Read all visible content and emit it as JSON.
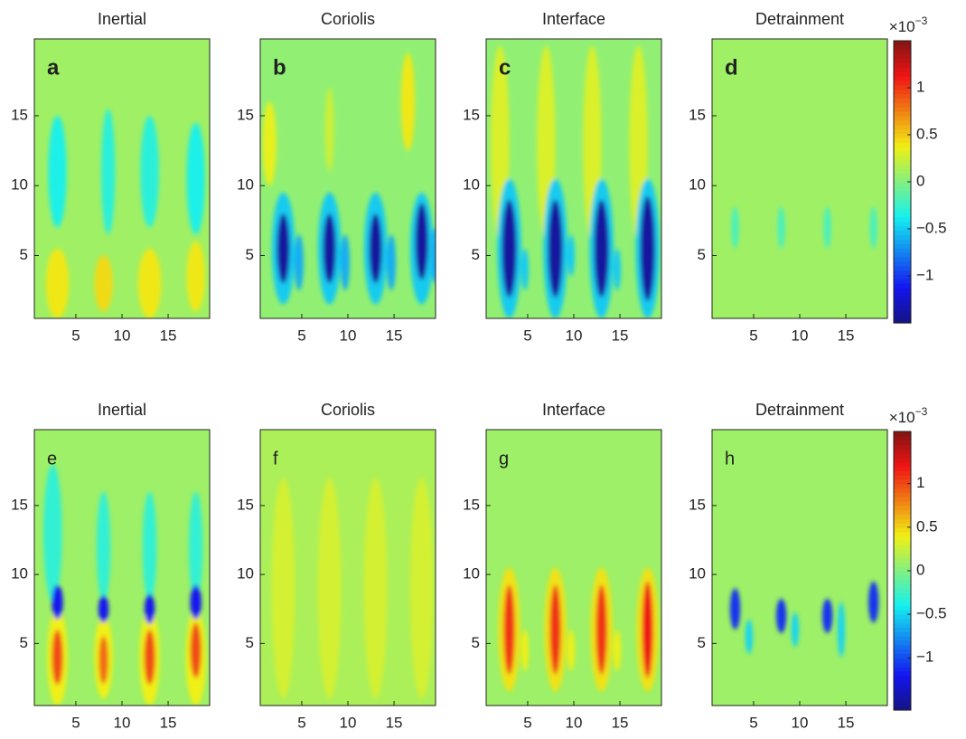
{
  "chart_data": [
    {
      "type": "heatmap",
      "title": "Inertial",
      "label": "a",
      "label_bold": true,
      "colormap": "jet",
      "clim": [
        -1.5,
        1.5
      ],
      "background": 0.1,
      "xlim": [
        0.5,
        19.5
      ],
      "ylim": [
        0.5,
        20.5
      ],
      "xticks": [
        5,
        10,
        15
      ],
      "yticks": [
        5,
        10,
        15
      ],
      "features": [
        {
          "x": 3,
          "y": 11,
          "width": 2,
          "height": 8,
          "value": -0.35
        },
        {
          "x": 8.5,
          "y": 11,
          "width": 1.5,
          "height": 9,
          "value": -0.3
        },
        {
          "x": 13,
          "y": 11,
          "width": 2,
          "height": 8,
          "value": -0.3
        },
        {
          "x": 18,
          "y": 10.5,
          "width": 2,
          "height": 8,
          "value": -0.35
        },
        {
          "x": 3,
          "y": 3,
          "width": 2.5,
          "height": 5,
          "value": 0.4
        },
        {
          "x": 8,
          "y": 3,
          "width": 2,
          "height": 4,
          "value": 0.45
        },
        {
          "x": 13,
          "y": 3,
          "width": 2.5,
          "height": 5,
          "value": 0.4
        },
        {
          "x": 18,
          "y": 3.5,
          "width": 2,
          "height": 5,
          "value": 0.4
        }
      ]
    },
    {
      "type": "heatmap",
      "title": "Coriolis",
      "label": "b",
      "label_bold": true,
      "colormap": "jet",
      "clim": [
        -1.5,
        1.5
      ],
      "background": 0.05,
      "xlim": [
        0.5,
        19.5
      ],
      "ylim": [
        0.5,
        20.5
      ],
      "xticks": [
        5,
        10,
        15
      ],
      "yticks": [
        5,
        10,
        15
      ],
      "features": [
        {
          "x": 1.5,
          "y": 13,
          "width": 1.5,
          "height": 6,
          "value": 0.35
        },
        {
          "x": 16.5,
          "y": 16,
          "width": 1.5,
          "height": 7,
          "value": 0.4
        },
        {
          "x": 8,
          "y": 14,
          "width": 1,
          "height": 6,
          "value": 0.25
        },
        {
          "x": 3,
          "y": 5.5,
          "width": 2.5,
          "height": 8,
          "value": -0.5
        },
        {
          "x": 8,
          "y": 5.5,
          "width": 2.5,
          "height": 8,
          "value": -0.5
        },
        {
          "x": 13,
          "y": 5.5,
          "width": 2.5,
          "height": 8,
          "value": -0.5
        },
        {
          "x": 18,
          "y": 5.5,
          "width": 2.5,
          "height": 8,
          "value": -0.5
        },
        {
          "x": 3,
          "y": 5.5,
          "width": 1.4,
          "height": 5,
          "value": -1.4
        },
        {
          "x": 8,
          "y": 5.5,
          "width": 1.4,
          "height": 5,
          "value": -1.4
        },
        {
          "x": 13,
          "y": 5.5,
          "width": 1.4,
          "height": 5,
          "value": -1.4
        },
        {
          "x": 18,
          "y": 6,
          "width": 1.4,
          "height": 5.5,
          "value": -1.4
        },
        {
          "x": 4.7,
          "y": 4.5,
          "width": 1,
          "height": 4,
          "value": -0.6
        },
        {
          "x": 9.7,
          "y": 4.5,
          "width": 1,
          "height": 4,
          "value": -0.6
        },
        {
          "x": 14.7,
          "y": 4.5,
          "width": 1,
          "height": 4,
          "value": -0.6
        },
        {
          "x": 19.5,
          "y": 5,
          "width": 1,
          "height": 4,
          "value": -0.6
        }
      ]
    },
    {
      "type": "heatmap",
      "title": "Interface",
      "label": "c",
      "label_bold": true,
      "colormap": "jet",
      "clim": [
        -1.5,
        1.5
      ],
      "background": 0.05,
      "xlim": [
        0.5,
        19.5
      ],
      "ylim": [
        0.5,
        20.5
      ],
      "xticks": [
        5,
        10,
        15
      ],
      "yticks": [
        5,
        10,
        15
      ],
      "features": [
        {
          "x": 2,
          "y": 13,
          "width": 2,
          "height": 14,
          "value": 0.3
        },
        {
          "x": 7,
          "y": 13,
          "width": 2,
          "height": 14,
          "value": 0.3
        },
        {
          "x": 12,
          "y": 13,
          "width": 2,
          "height": 14,
          "value": 0.3
        },
        {
          "x": 17,
          "y": 13,
          "width": 2,
          "height": 14,
          "value": 0.3
        },
        {
          "x": 3,
          "y": 5.5,
          "width": 2.6,
          "height": 10,
          "value": -0.5
        },
        {
          "x": 8,
          "y": 5.5,
          "width": 2.6,
          "height": 10,
          "value": -0.5
        },
        {
          "x": 13,
          "y": 5.5,
          "width": 2.6,
          "height": 10,
          "value": -0.5
        },
        {
          "x": 18,
          "y": 5.5,
          "width": 2.6,
          "height": 10,
          "value": -0.5
        },
        {
          "x": 3,
          "y": 5.5,
          "width": 1.6,
          "height": 7,
          "value": -1.4
        },
        {
          "x": 8,
          "y": 5.5,
          "width": 1.6,
          "height": 7,
          "value": -1.4
        },
        {
          "x": 13,
          "y": 5.5,
          "width": 1.6,
          "height": 7,
          "value": -1.4
        },
        {
          "x": 18,
          "y": 5.5,
          "width": 1.6,
          "height": 7.5,
          "value": -1.4
        },
        {
          "x": 4.7,
          "y": 4,
          "width": 0.8,
          "height": 3,
          "value": -0.5
        },
        {
          "x": 9.7,
          "y": 5,
          "width": 0.8,
          "height": 3,
          "value": -0.5
        },
        {
          "x": 14.7,
          "y": 4,
          "width": 0.8,
          "height": 3,
          "value": -0.5
        }
      ]
    },
    {
      "type": "heatmap",
      "title": "Detrainment",
      "label": "d",
      "label_bold": true,
      "colormap": "jet",
      "clim": [
        -1.5,
        1.5
      ],
      "background": 0.1,
      "xlim": [
        0.5,
        19.5
      ],
      "ylim": [
        0.5,
        20.5
      ],
      "xticks": [
        5,
        10,
        15
      ],
      "yticks": [
        5,
        10,
        15
      ],
      "features": [
        {
          "x": 3,
          "y": 7,
          "width": 0.8,
          "height": 3,
          "value": -0.2
        },
        {
          "x": 8,
          "y": 7,
          "width": 0.8,
          "height": 3,
          "value": -0.2
        },
        {
          "x": 13,
          "y": 7,
          "width": 0.8,
          "height": 3,
          "value": -0.2
        },
        {
          "x": 18,
          "y": 7,
          "width": 0.8,
          "height": 3,
          "value": -0.2
        }
      ],
      "cticks": [
        {
          "value": -1,
          "label": "−1"
        },
        {
          "value": -0.5,
          "label": "−0.5"
        },
        0,
        0.5,
        1
      ],
      "cbase": "×10",
      "cexponent": "−3"
    },
    {
      "type": "heatmap",
      "title": "Inertial",
      "label": "e",
      "label_bold": false,
      "colormap": "jet",
      "clim": [
        -1.6,
        1.6
      ],
      "background": 0.1,
      "xlim": [
        0.5,
        19.5
      ],
      "ylim": [
        0.5,
        20.5
      ],
      "xticks": [
        5,
        10,
        15
      ],
      "yticks": [
        5,
        10,
        15
      ],
      "features": [
        {
          "x": 2.5,
          "y": 13,
          "width": 2,
          "height": 10,
          "value": -0.3
        },
        {
          "x": 8,
          "y": 12,
          "width": 1.5,
          "height": 8,
          "value": -0.3
        },
        {
          "x": 13,
          "y": 12,
          "width": 1.5,
          "height": 8,
          "value": -0.3
        },
        {
          "x": 18,
          "y": 12,
          "width": 1.5,
          "height": 8,
          "value": -0.3
        },
        {
          "x": 3,
          "y": 4,
          "width": 2.2,
          "height": 7,
          "value": 0.4
        },
        {
          "x": 8,
          "y": 4,
          "width": 2,
          "height": 6,
          "value": 0.4
        },
        {
          "x": 13,
          "y": 4,
          "width": 2.2,
          "height": 7,
          "value": 0.4
        },
        {
          "x": 18,
          "y": 4,
          "width": 2.2,
          "height": 7,
          "value": 0.4
        },
        {
          "x": 3,
          "y": 4,
          "width": 1.2,
          "height": 4,
          "value": 1.0
        },
        {
          "x": 8,
          "y": 3.8,
          "width": 1,
          "height": 3.5,
          "value": 0.9
        },
        {
          "x": 13,
          "y": 4,
          "width": 1.2,
          "height": 4,
          "value": 1.0
        },
        {
          "x": 18,
          "y": 4.5,
          "width": 1.2,
          "height": 4,
          "value": 1.0
        },
        {
          "x": 3,
          "y": 8,
          "width": 1.2,
          "height": 2.5,
          "value": -1.2
        },
        {
          "x": 8,
          "y": 7.5,
          "width": 1.1,
          "height": 2,
          "value": -1.2
        },
        {
          "x": 13,
          "y": 7.5,
          "width": 1.1,
          "height": 2.2,
          "value": -1.2
        },
        {
          "x": 18,
          "y": 8,
          "width": 1.2,
          "height": 2.5,
          "value": -1.2
        }
      ]
    },
    {
      "type": "heatmap",
      "title": "Coriolis",
      "label": "f",
      "label_bold": false,
      "colormap": "jet",
      "clim": [
        -1.6,
        1.6
      ],
      "background": 0.15,
      "xlim": [
        0.5,
        19.5
      ],
      "ylim": [
        0.5,
        20.5
      ],
      "xticks": [
        5,
        10,
        15
      ],
      "yticks": [
        5,
        10,
        15
      ],
      "features": [
        {
          "x": 3,
          "y": 9,
          "width": 2.5,
          "height": 16,
          "value": 0.3
        },
        {
          "x": 8,
          "y": 9,
          "width": 2.5,
          "height": 16,
          "value": 0.3
        },
        {
          "x": 13,
          "y": 9,
          "width": 2.5,
          "height": 16,
          "value": 0.3
        },
        {
          "x": 18,
          "y": 9,
          "width": 2.5,
          "height": 16,
          "value": 0.3
        }
      ]
    },
    {
      "type": "heatmap",
      "title": "Interface",
      "label": "g",
      "label_bold": false,
      "colormap": "jet",
      "clim": [
        -1.6,
        1.6
      ],
      "background": 0.1,
      "xlim": [
        0.5,
        19.5
      ],
      "ylim": [
        0.5,
        20.5
      ],
      "xticks": [
        5,
        10,
        15
      ],
      "yticks": [
        5,
        10,
        15
      ],
      "features": [
        {
          "x": 3,
          "y": 6,
          "width": 2.4,
          "height": 9,
          "value": 0.45
        },
        {
          "x": 8,
          "y": 6,
          "width": 2.4,
          "height": 9,
          "value": 0.45
        },
        {
          "x": 13,
          "y": 6,
          "width": 2.4,
          "height": 9,
          "value": 0.45
        },
        {
          "x": 18,
          "y": 6,
          "width": 2.4,
          "height": 9,
          "value": 0.45
        },
        {
          "x": 3,
          "y": 6,
          "width": 1.2,
          "height": 6.5,
          "value": 1.1
        },
        {
          "x": 8,
          "y": 6,
          "width": 1.2,
          "height": 6.5,
          "value": 1.1
        },
        {
          "x": 13,
          "y": 6,
          "width": 1.2,
          "height": 6.5,
          "value": 1.1
        },
        {
          "x": 18,
          "y": 6,
          "width": 1.2,
          "height": 7,
          "value": 1.2
        },
        {
          "x": 4.7,
          "y": 4.5,
          "width": 0.8,
          "height": 3,
          "value": 0.4
        },
        {
          "x": 9.7,
          "y": 4.5,
          "width": 0.8,
          "height": 3,
          "value": 0.4
        },
        {
          "x": 14.7,
          "y": 4.5,
          "width": 0.8,
          "height": 3,
          "value": 0.4
        }
      ]
    },
    {
      "type": "heatmap",
      "title": "Detrainment",
      "label": "h",
      "label_bold": false,
      "colormap": "jet",
      "clim": [
        -1.6,
        1.6
      ],
      "background": 0.1,
      "xlim": [
        0.5,
        19.5
      ],
      "ylim": [
        0.5,
        20.5
      ],
      "xticks": [
        5,
        10,
        15
      ],
      "yticks": [
        5,
        10,
        15
      ],
      "features": [
        {
          "x": 3,
          "y": 7.5,
          "width": 1.1,
          "height": 3,
          "value": -1.1
        },
        {
          "x": 8,
          "y": 7,
          "width": 1.1,
          "height": 2.5,
          "value": -1.1
        },
        {
          "x": 13,
          "y": 7,
          "width": 1.1,
          "height": 2.5,
          "value": -1.1
        },
        {
          "x": 18,
          "y": 8,
          "width": 1.1,
          "height": 3,
          "value": -1.1
        },
        {
          "x": 4.5,
          "y": 5.5,
          "width": 0.8,
          "height": 2.5,
          "value": -0.5
        },
        {
          "x": 9.5,
          "y": 6,
          "width": 0.8,
          "height": 2.5,
          "value": -0.5
        },
        {
          "x": 14.5,
          "y": 6,
          "width": 0.8,
          "height": 4,
          "value": -0.5
        }
      ],
      "cticks": [
        {
          "value": -1,
          "label": "−1"
        },
        {
          "value": -0.5,
          "label": "−0.5"
        },
        0,
        0.5,
        1
      ],
      "cbase": "×10",
      "cexponent": "−3"
    }
  ]
}
